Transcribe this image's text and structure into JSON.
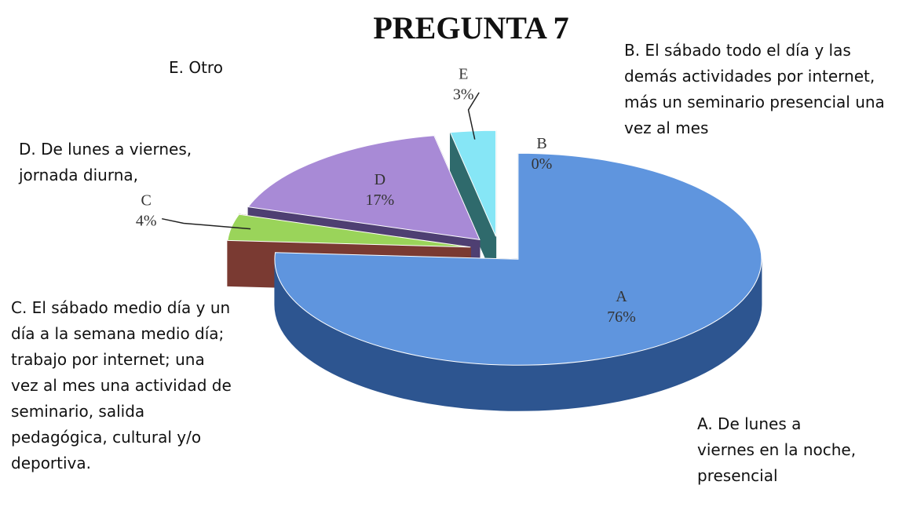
{
  "chart_data": {
    "type": "pie3d",
    "title": "PREGUNTA 7",
    "categories": [
      "B",
      "A",
      "C",
      "D",
      "E"
    ],
    "values": [
      0,
      76,
      4,
      17,
      3
    ],
    "value_labels": [
      "0%",
      "76%",
      "4%",
      "17%",
      "3%"
    ],
    "colors": [
      "#f0a040",
      "#5f95de",
      "#9ad45a",
      "#a88ad6",
      "#86e6f6"
    ],
    "side_colors": [
      "#a06020",
      "#2d5590",
      "#7a3a32",
      "#4e3f72",
      "#2f6a6c"
    ],
    "exploded": true,
    "descriptions": [
      "B. El sábado todo el día y las demás actividades por internet, más un seminario presencial una vez al mes",
      "A. De lunes a viernes en la noche, presencial",
      "C. El sábado medio día y un día a la semana medio día; trabajo por internet; una vez al mes una actividad de seminario, salida pedagógica, cultural y/o deportiva.",
      "D. De lunes a viernes, jornada diurna,",
      "E. Otro"
    ]
  }
}
